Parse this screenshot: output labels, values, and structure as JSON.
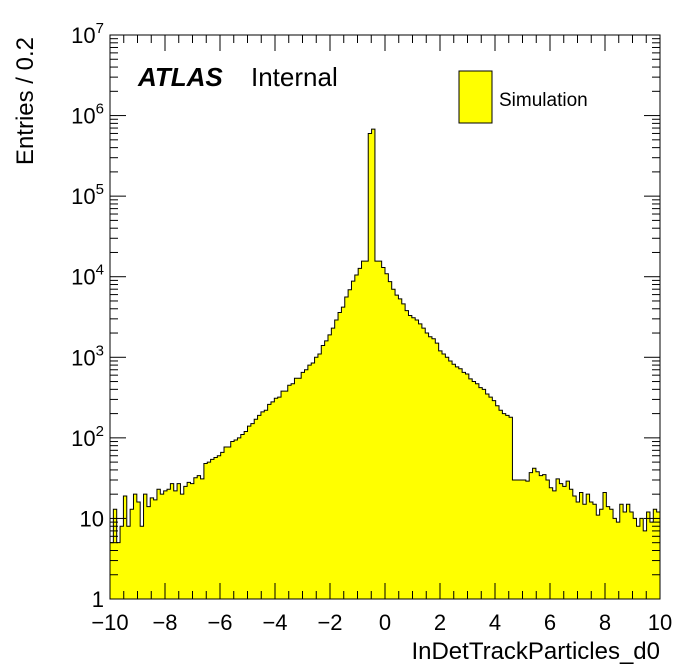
{
  "chart_data": {
    "type": "histogram",
    "xlabel": "InDetTrackParticles_d0",
    "ylabel": "Entries / 0.2",
    "xlim": [
      -10,
      10
    ],
    "ylim": [
      1,
      10000000
    ],
    "yscale": "log",
    "bin_width": 0.2,
    "x_ticks": [
      {
        "value": -10,
        "label": "−10"
      },
      {
        "value": -8,
        "label": "−8"
      },
      {
        "value": -6,
        "label": "−6"
      },
      {
        "value": -4,
        "label": "−4"
      },
      {
        "value": -2,
        "label": "−2"
      },
      {
        "value": 0,
        "label": "0"
      },
      {
        "value": 2,
        "label": "2"
      },
      {
        "value": 4,
        "label": "4"
      },
      {
        "value": 6,
        "label": "6"
      },
      {
        "value": 8,
        "label": "8"
      },
      {
        "value": 10,
        "label": "10"
      }
    ],
    "y_ticks": [
      {
        "value": 1,
        "base": "1",
        "exp": ""
      },
      {
        "value": 10,
        "base": "10",
        "exp": ""
      },
      {
        "value": 100,
        "base": "10",
        "exp": "2"
      },
      {
        "value": 1000,
        "base": "10",
        "exp": "3"
      },
      {
        "value": 10000,
        "base": "10",
        "exp": "4"
      },
      {
        "value": 100000,
        "base": "10",
        "exp": "5"
      },
      {
        "value": 1000000,
        "base": "10",
        "exp": "6"
      },
      {
        "value": 10000000,
        "base": "10",
        "exp": "7"
      }
    ],
    "atlas_label": "ATLAS",
    "atlas_sublabel": "Internal",
    "legend": {
      "position": "top-right",
      "entries": [
        {
          "name": "Simulation",
          "color": "#ffff00"
        }
      ]
    },
    "fill_color": "#ffff00",
    "line_color": "#000000",
    "bin_contents": [
      5,
      13,
      5,
      8,
      19,
      8,
      13,
      20,
      16,
      8,
      20,
      14,
      18,
      17,
      23,
      20,
      22,
      23,
      27,
      22,
      27,
      20,
      25,
      28,
      27,
      32,
      34,
      31,
      48,
      50,
      54,
      57,
      60,
      66,
      77,
      77,
      90,
      94,
      100,
      110,
      120,
      140,
      150,
      170,
      190,
      210,
      220,
      260,
      280,
      310,
      320,
      380,
      380,
      450,
      470,
      550,
      550,
      650,
      700,
      800,
      850,
      1000,
      1100,
      1400,
      1600,
      1900,
      2300,
      2900,
      3600,
      4200,
      5600,
      6900,
      8800,
      10500,
      12700,
      15600,
      15600,
      600000,
      680000,
      15600,
      15600,
      13000,
      10900,
      8700,
      7000,
      5900,
      5300,
      4600,
      3800,
      3300,
      3100,
      2900,
      2600,
      2300,
      2000,
      1800,
      1700,
      1500,
      1200,
      1100,
      1000,
      900,
      820,
      760,
      720,
      650,
      620,
      540,
      500,
      470,
      420,
      400,
      350,
      320,
      290,
      250,
      220,
      200,
      190,
      180,
      30,
      30,
      30,
      30,
      29,
      37,
      42,
      38,
      34,
      35,
      30,
      24,
      22,
      31,
      27,
      25,
      29,
      23,
      19,
      16,
      21,
      15,
      20,
      16,
      15,
      11,
      13,
      21,
      14,
      13,
      10,
      9,
      15,
      12,
      15,
      12,
      10,
      8,
      10,
      7,
      12,
      9,
      13,
      12
    ]
  }
}
